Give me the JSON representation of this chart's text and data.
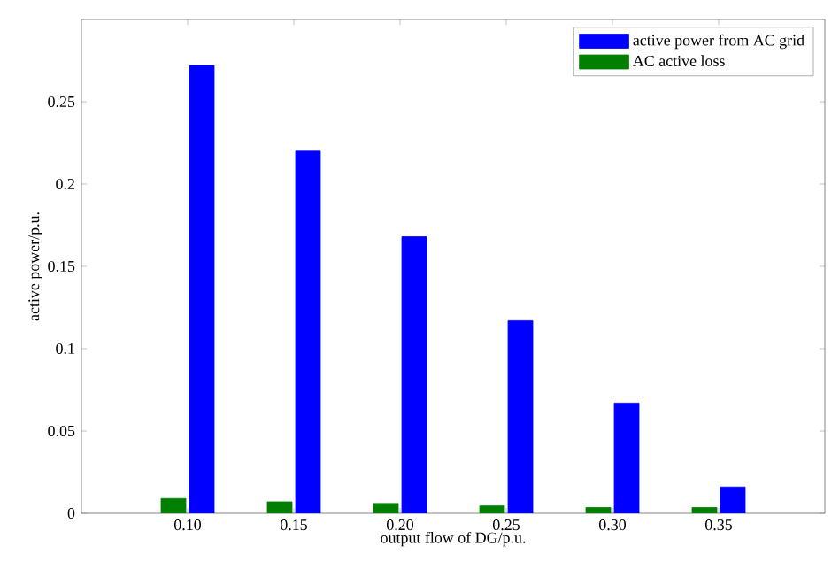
{
  "chart_data": {
    "type": "bar",
    "xlabel": "output flow of  DG/p.u.",
    "ylabel": "active power/p.u.",
    "categories": [
      "0.10",
      "0.15",
      "0.20",
      "0.25",
      "0.30",
      "0.35"
    ],
    "series": [
      {
        "name": "AC active loss",
        "color": "#007f00",
        "values": [
          0.009,
          0.007,
          0.006,
          0.0045,
          0.0035,
          0.0035
        ]
      },
      {
        "name": "active power from AC grid",
        "color": "#0000ff",
        "values": [
          0.272,
          0.22,
          0.168,
          0.117,
          0.067,
          0.016
        ]
      }
    ],
    "ylim": [
      0,
      0.3
    ],
    "yticks": [
      0,
      0.05,
      0.1,
      0.15,
      0.2,
      0.25
    ],
    "legend": "top right",
    "grid": false
  }
}
